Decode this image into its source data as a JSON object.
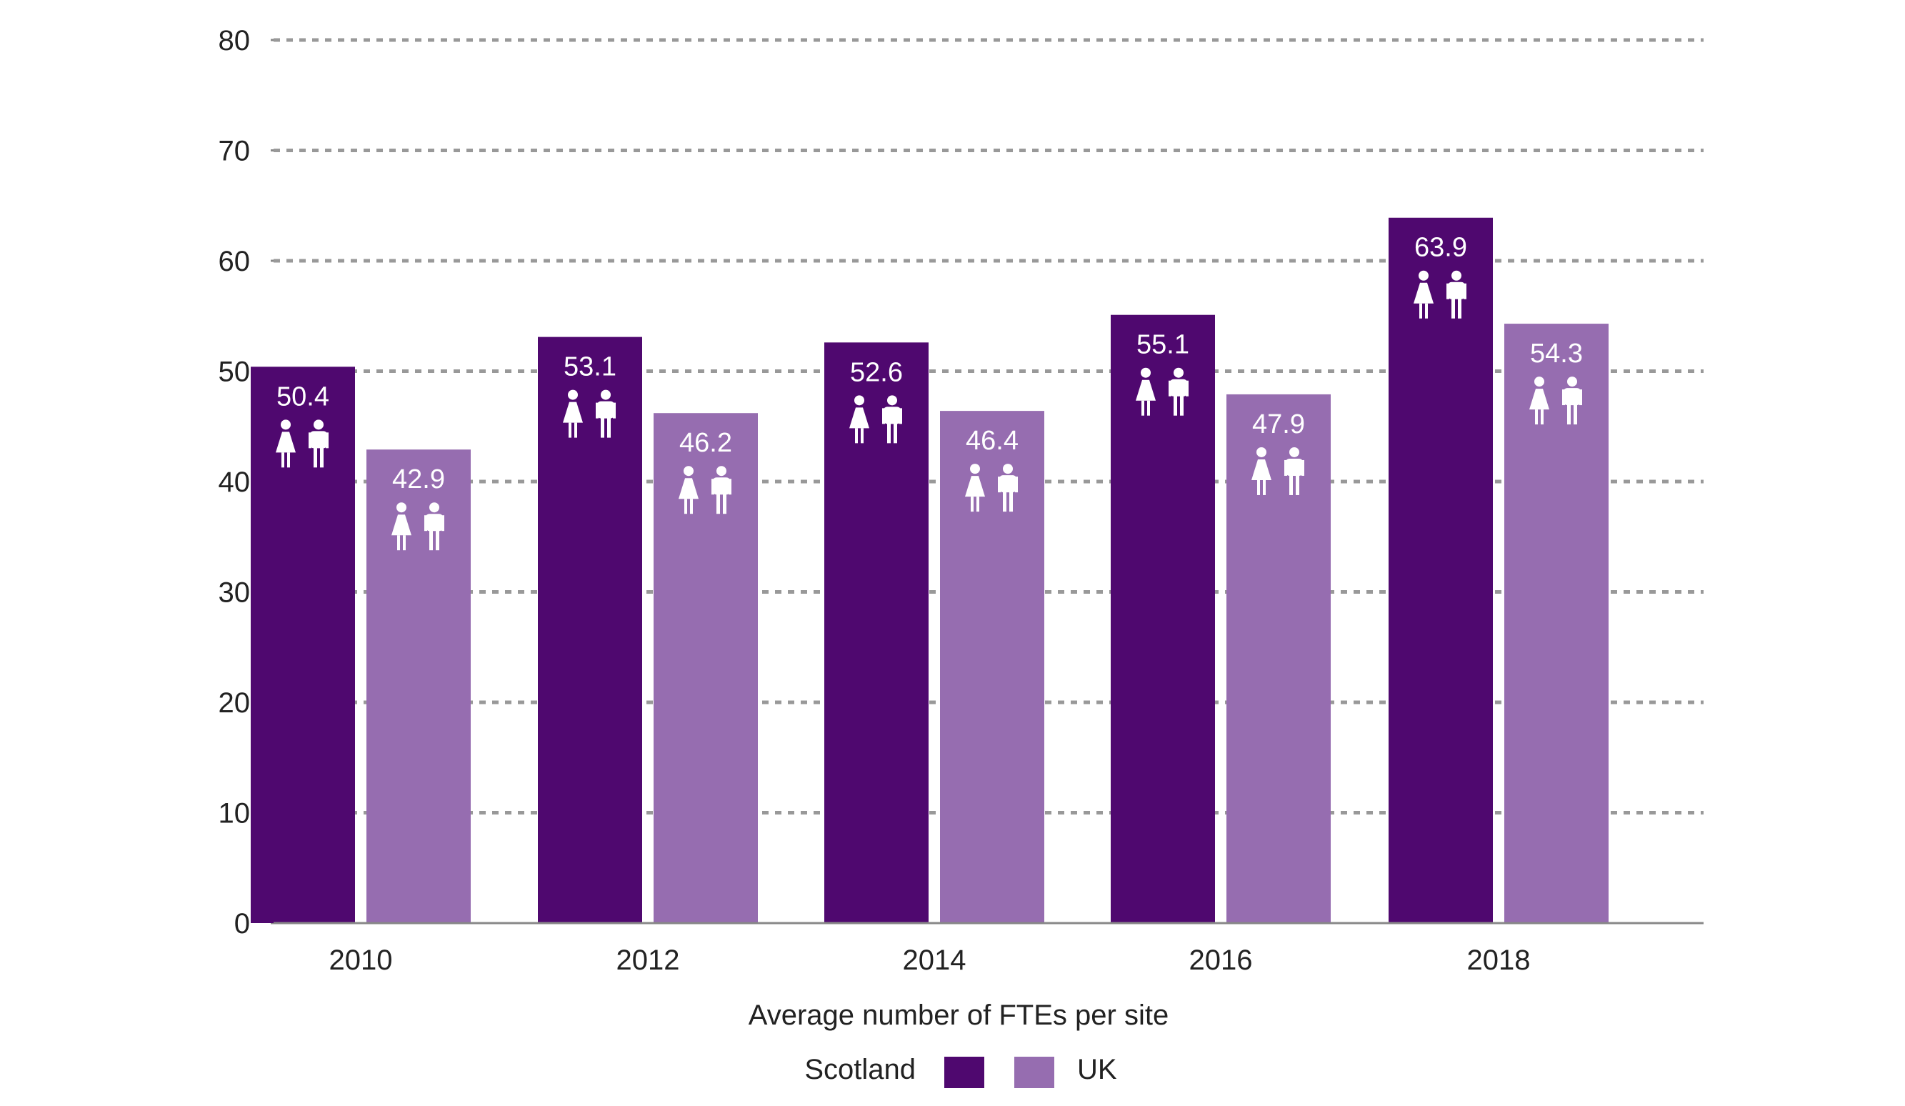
{
  "chart_data": {
    "type": "bar",
    "categories": [
      "2010",
      "2012",
      "2014",
      "2016",
      "2018"
    ],
    "series": [
      {
        "name": "Scotland",
        "values": [
          50.4,
          53.1,
          52.6,
          55.1,
          63.9
        ],
        "color": "#4F086F"
      },
      {
        "name": "UK",
        "values": [
          42.9,
          46.2,
          46.4,
          47.9,
          54.3
        ],
        "color": "#966DB0"
      }
    ],
    "title": "",
    "xlabel": "Average number of FTEs per site",
    "ylabel": "",
    "ylim": [
      0,
      80
    ],
    "yticks": [
      "0",
      "10",
      "20",
      "30",
      "40",
      "50",
      "60",
      "70",
      "80"
    ],
    "data_labels": [
      [
        "50.4",
        "53.1",
        "52.6",
        "55.1",
        "63.9"
      ],
      [
        "42.9",
        "46.2",
        "46.4",
        "47.9",
        "54.3"
      ]
    ],
    "grid": "dotted horizontal",
    "legend_position": "bottom",
    "icon": "female-male-person-icon",
    "gridline_color": "#999999",
    "axis_color": "#888888"
  }
}
